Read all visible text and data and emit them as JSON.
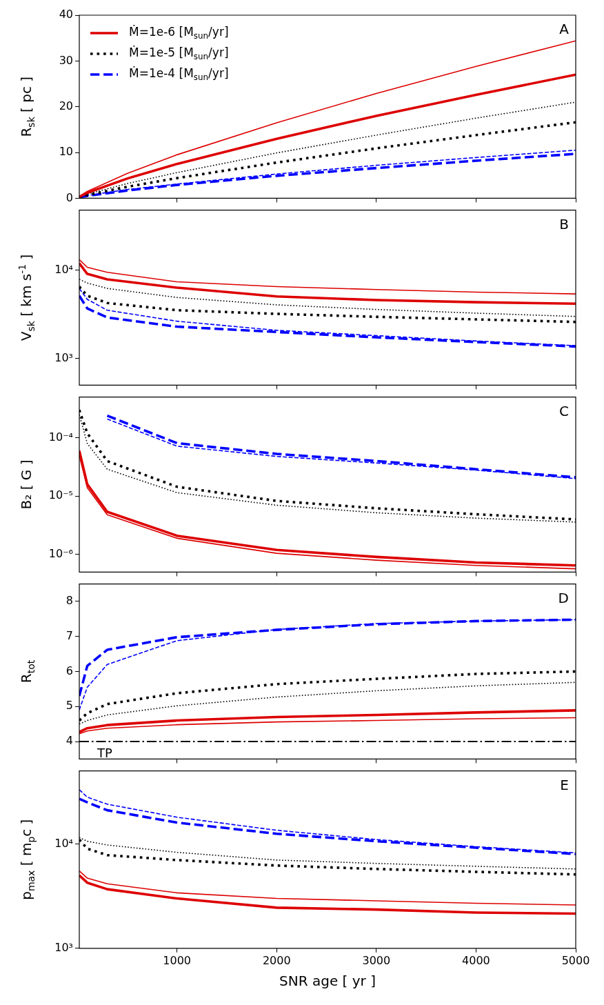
{
  "chart_data": [
    {
      "type": "line",
      "ylabel": "R$_{sk}$ [ pc ]",
      "annotations": [
        "A"
      ],
      "x": [
        20,
        100,
        500,
        1000,
        2000,
        3000,
        4000,
        5000
      ],
      "xlim": [
        20,
        5000
      ],
      "xticks": [
        1000,
        2000,
        3000,
        4000,
        5000
      ],
      "ylim": [
        0,
        40
      ],
      "yticks": [
        0,
        10,
        20,
        30,
        40
      ],
      "tick_labels": "y",
      "legend": "top left",
      "series": [
        {
          "name": "Ṁ=1e-6 [M$_{sun}$/yr]",
          "color": "#dd0000",
          "line_style": "solid",
          "values": [
            0.3,
            1.2,
            4.3,
            7.5,
            13,
            18,
            22.6,
            27
          ]
        },
        {
          "color": "#dd0000",
          "line_style": "solid",
          "values": [
            0.4,
            1.5,
            5.4,
            9.5,
            16.5,
            22.9,
            28.8,
            34.4
          ]
        },
        {
          "name": "Ṁ=1e-5 [M$_{sun}$/yr]",
          "color": "#000000",
          "line_style": "dotted",
          "values": [
            0.2,
            0.7,
            2.5,
            4.4,
            7.8,
            10.9,
            13.8,
            16.6
          ]
        },
        {
          "color": "#000000",
          "line_style": "dotted",
          "values": [
            0.3,
            0.9,
            3.2,
            5.6,
            9.9,
            13.8,
            17.5,
            21
          ]
        },
        {
          "name": "Ṁ=1e-4 [M$_{sun}$/yr]",
          "color": "#0000ff",
          "line_style": "dashed",
          "values": [
            0.2,
            0.5,
            1.7,
            2.9,
            4.9,
            6.6,
            8.2,
            9.7
          ]
        },
        {
          "color": "#0000ff",
          "line_style": "dashed",
          "values": [
            0.2,
            0.6,
            1.9,
            3.1,
            5.3,
            7.2,
            8.9,
            10.5
          ]
        }
      ]
    },
    {
      "type": "line",
      "ylabel": "V$_{sk}$ [ km s$^{-1}$ ]",
      "annotations": [
        "B"
      ],
      "x": [
        20,
        100,
        300,
        1000,
        2000,
        3000,
        4000,
        5000
      ],
      "xlim": [
        20,
        5000
      ],
      "xticks": [
        1000,
        2000,
        3000,
        4000,
        5000
      ],
      "ylim": [
        500,
        48000
      ],
      "yticks": [
        {
          "value": 1000,
          "label": "10³"
        },
        {
          "value": 10000,
          "label": "10⁴"
        }
      ],
      "log": "y",
      "tick_labels": "y",
      "series": [
        {
          "color": "#dd0000",
          "line_style": "solid",
          "values": [
            12000,
            9100,
            7900,
            6350,
            5050,
            4600,
            4350,
            4180
          ]
        },
        {
          "color": "#dd0000",
          "line_style": "solid",
          "values": [
            13200,
            10800,
            9500,
            7400,
            6530,
            6050,
            5660,
            5400
          ]
        },
        {
          "color": "#000000",
          "line_style": "dotted",
          "values": [
            6530,
            5150,
            4260,
            3530,
            3210,
            2970,
            2780,
            2600
          ]
        },
        {
          "color": "#000000",
          "line_style": "dotted",
          "values": [
            7900,
            7180,
            6230,
            4920,
            4060,
            3600,
            3270,
            3000
          ]
        },
        {
          "color": "#0000ff",
          "line_style": "dashed",
          "values": [
            5150,
            3700,
            2920,
            2300,
            2000,
            1740,
            1540,
            1370
          ]
        },
        {
          "color": "#0000ff",
          "line_style": "dashed",
          "values": [
            6230,
            4690,
            3530,
            2650,
            2090,
            1820,
            1580,
            1400
          ]
        }
      ]
    },
    {
      "type": "line",
      "ylabel": "B₂ [ G ]",
      "annotations": [
        "C"
      ],
      "x": [
        20,
        100,
        300,
        1000,
        2000,
        3000,
        4000,
        5000
      ],
      "xlim": [
        20,
        5000
      ],
      "xticks": [
        1000,
        2000,
        3000,
        4000,
        5000
      ],
      "ylim": [
        5e-07,
        0.0005
      ],
      "yticks": [
        {
          "value": 1e-06,
          "label": "10⁻⁶"
        },
        {
          "value": 1e-05,
          "label": "10⁻⁵"
        },
        {
          "value": 0.0001,
          "label": "10⁻⁴"
        }
      ],
      "log": "y",
      "tick_labels": "y",
      "series": [
        {
          "color": "#dd0000",
          "line_style": "solid",
          "values": [
            6e-05,
            1.6e-05,
            5.4e-06,
            2.1e-06,
            1.2e-06,
            9.1e-07,
            7.3e-07,
            6.5e-07
          ]
        },
        {
          "color": "#dd0000",
          "line_style": "solid",
          "values": [
            5e-05,
            1.4e-05,
            4.8e-06,
            1.9e-06,
            1.05e-06,
            8e-07,
            6.5e-07,
            5.7e-07
          ]
        },
        {
          "color": "#000000",
          "line_style": "dotted",
          "values": [
            0.0003,
            0.00012,
            4e-05,
            1.45e-05,
            8.3e-06,
            6.2e-06,
            4.9e-06,
            4e-06
          ]
        },
        {
          "color": "#000000",
          "line_style": "dotted",
          "values": [
            0.00025,
            8e-05,
            2.9e-05,
            1.15e-05,
            7e-06,
            5.2e-06,
            4.2e-06,
            3.6e-06
          ]
        },
        {
          "color": "#0000ff",
          "line_style": "dashed",
          "values": [
            null,
            null,
            0.00024,
            8.1e-05,
            5.3e-05,
            4e-05,
            2.9e-05,
            2.1e-05
          ]
        },
        {
          "color": "#0000ff",
          "line_style": "dashed",
          "values": [
            null,
            null,
            0.00021,
            7.2e-05,
            4.8e-05,
            3.7e-05,
            2.8e-05,
            2e-05
          ]
        }
      ]
    },
    {
      "type": "line",
      "ylabel": "R$_{tot}$",
      "annotations": [
        "D"
      ],
      "x": [
        20,
        100,
        300,
        1000,
        2000,
        3000,
        4000,
        5000
      ],
      "xlim": [
        20,
        5000
      ],
      "xticks": [
        1000,
        2000,
        3000,
        4000,
        5000
      ],
      "ylim": [
        3.5,
        8.5
      ],
      "yticks": [
        4,
        5,
        6,
        7,
        8
      ],
      "tick_labels": "y",
      "ref_lines": [
        {
          "axis": "y",
          "value": 4,
          "label": "TP",
          "color": "#000000"
        }
      ],
      "series": [
        {
          "color": "#dd0000",
          "line_style": "solid",
          "values": [
            4.27,
            4.38,
            4.47,
            4.6,
            4.7,
            4.76,
            4.83,
            4.89
          ]
        },
        {
          "color": "#dd0000",
          "line_style": "solid",
          "values": [
            4.22,
            4.3,
            4.38,
            4.48,
            4.56,
            4.6,
            4.65,
            4.68
          ]
        },
        {
          "color": "#000000",
          "line_style": "dotted",
          "values": [
            4.6,
            4.81,
            5.07,
            5.38,
            5.64,
            5.79,
            5.93,
            6.0
          ]
        },
        {
          "color": "#000000",
          "line_style": "dotted",
          "values": [
            4.5,
            4.6,
            4.76,
            5.02,
            5.27,
            5.45,
            5.59,
            5.69
          ]
        },
        {
          "color": "#0000ff",
          "line_style": "dashed",
          "values": [
            5.3,
            6.16,
            6.62,
            6.98,
            7.19,
            7.35,
            7.44,
            7.48
          ]
        },
        {
          "color": "#0000ff",
          "line_style": "dashed",
          "values": [
            4.9,
            5.55,
            6.2,
            6.88,
            7.2,
            7.37,
            7.44,
            7.48
          ]
        }
      ]
    },
    {
      "type": "line",
      "ylabel": "p$_{max}$ [ m$_{p}$c ]",
      "xlabel": "SNR age [ yr ]",
      "annotations": [
        "E"
      ],
      "x": [
        20,
        100,
        300,
        1000,
        2000,
        3000,
        4000,
        5000
      ],
      "xlim": [
        20,
        5000
      ],
      "xticks": [
        1000,
        2000,
        3000,
        4000,
        5000
      ],
      "ylim": [
        1000,
        50000
      ],
      "yticks": [
        {
          "value": 1000,
          "label": "10³"
        },
        {
          "value": 10000,
          "label": "10⁴"
        }
      ],
      "log": "y",
      "series": [
        {
          "color": "#dd0000",
          "line_style": "solid",
          "values": [
            5000,
            4250,
            3680,
            3000,
            2450,
            2350,
            2200,
            2150
          ]
        },
        {
          "color": "#dd0000",
          "line_style": "solid",
          "values": [
            5500,
            4700,
            4150,
            3400,
            3000,
            2850,
            2700,
            2600
          ]
        },
        {
          "color": "#000000",
          "line_style": "dotted",
          "values": [
            11000,
            9000,
            7800,
            7000,
            6200,
            5750,
            5400,
            5100
          ]
        },
        {
          "color": "#000000",
          "line_style": "dotted",
          "values": [
            11500,
            10600,
            9760,
            8300,
            7000,
            6500,
            6100,
            5750
          ]
        },
        {
          "color": "#0000ff",
          "line_style": "dashed",
          "values": [
            27000,
            25000,
            21000,
            16000,
            12500,
            10600,
            9200,
            8000
          ]
        },
        {
          "color": "#0000ff",
          "line_style": "dashed",
          "values": [
            33000,
            28000,
            24000,
            18000,
            13500,
            11000,
            9400,
            8200
          ]
        }
      ]
    }
  ]
}
